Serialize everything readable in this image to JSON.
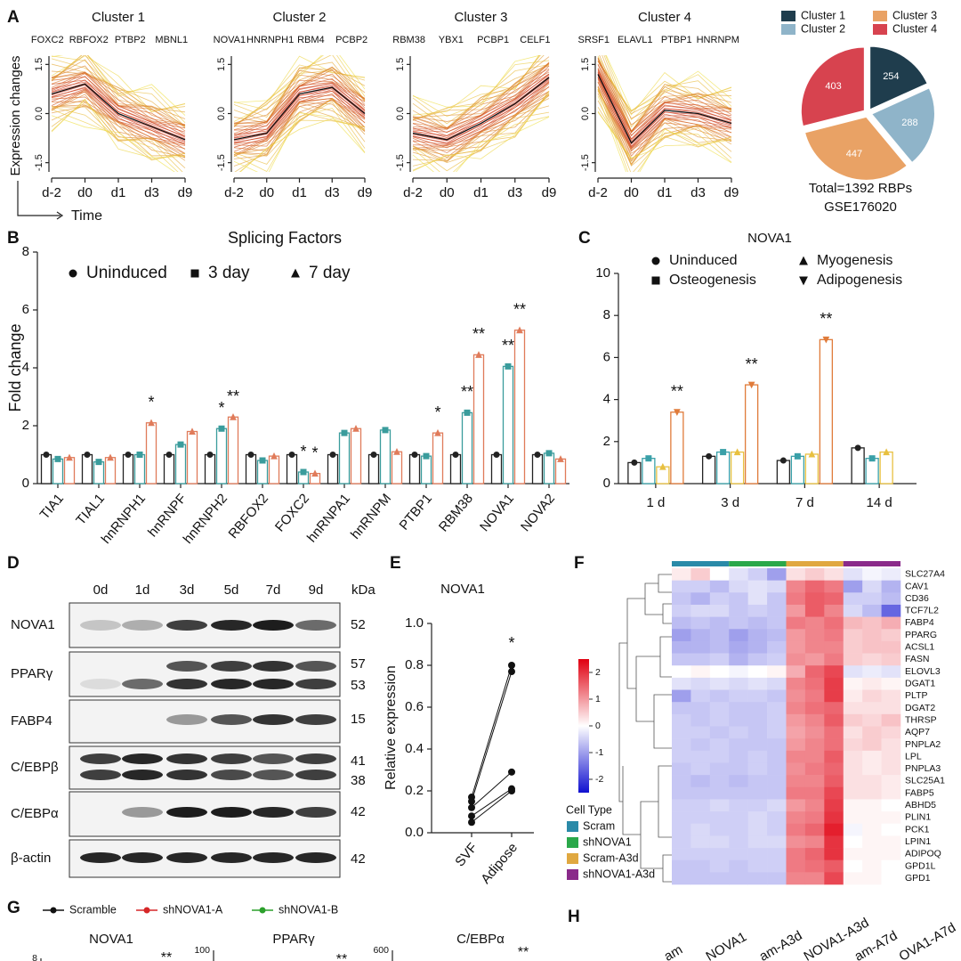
{
  "panel_labels": [
    "A",
    "B",
    "C",
    "D",
    "E",
    "F",
    "G",
    "H"
  ],
  "chart_data": [
    {
      "type": "line",
      "title": "Cluster 1",
      "genes": [
        "FOXC2",
        "RBFOX2",
        "PTBP2",
        "MBNL1"
      ],
      "ylabel": "Expression changes",
      "xlabel": "Time",
      "categories": [
        "d-2",
        "d0",
        "d1",
        "d3",
        "d9"
      ],
      "series": [
        {
          "color": "#111111",
          "values": [
            0.6,
            0.9,
            0.0,
            -0.4,
            -0.8
          ]
        }
      ],
      "ylim": [
        -1.7,
        1.7
      ],
      "yticks": [
        1.5,
        {
          "value": 0,
          "label": "0.0"
        },
        -1.5
      ]
    },
    {
      "type": "line",
      "title": "Cluster 2",
      "genes": [
        "NOVA1",
        "HNRNPH1",
        "RBM4",
        "PCBP2"
      ],
      "categories": [
        "d-2",
        "d0",
        "d1",
        "d3",
        "d9"
      ],
      "series": [
        {
          "color": "#111111",
          "values": [
            -0.8,
            -0.6,
            0.6,
            0.8,
            0.0
          ]
        }
      ],
      "ylim": [
        -1.7,
        1.7
      ],
      "yticks": [
        1.5,
        {
          "value": 0,
          "label": "0.0"
        },
        -1.5
      ]
    },
    {
      "type": "line",
      "title": "Cluster 3",
      "genes": [
        "RBM38",
        "YBX1",
        "PCBP1",
        "CELF1"
      ],
      "categories": [
        "d-2",
        "d0",
        "d1",
        "d3",
        "d9"
      ],
      "series": [
        {
          "color": "#111111",
          "values": [
            -0.6,
            -0.8,
            -0.3,
            0.3,
            1.1
          ]
        }
      ],
      "ylim": [
        -1.7,
        1.7
      ],
      "yticks": [
        1.5,
        {
          "value": 0,
          "label": "0.0"
        },
        -1.5
      ]
    },
    {
      "type": "line",
      "title": "Cluster 4",
      "genes": [
        "SRSF1",
        "ELAVL1",
        "PTBP1",
        "HNRNPM"
      ],
      "categories": [
        "d-2",
        "d0",
        "d1",
        "d3",
        "d9"
      ],
      "series": [
        {
          "color": "#111111",
          "values": [
            1.2,
            -0.9,
            0.1,
            0.0,
            -0.3
          ]
        }
      ],
      "ylim": [
        -1.7,
        1.7
      ],
      "yticks": [
        1.5,
        {
          "value": 0,
          "label": "0.0"
        },
        -1.5
      ]
    },
    {
      "type": "pie",
      "categories": [
        "Cluster 1",
        "Cluster 2",
        "Cluster 3",
        "Cluster 4"
      ],
      "values": [
        254,
        288,
        447,
        403
      ],
      "colors": [
        "#1f3d4d",
        "#8fb4c9",
        "#e9a265",
        "#d7434f"
      ],
      "caption": [
        "Total=1392 RBPs",
        "GSE176020"
      ]
    },
    {
      "type": "bar",
      "title": "Splicing Factors",
      "ylabel": "Fold change",
      "categories": [
        "TIA1",
        "TIAL1",
        "hnRNPH1",
        "hnRNPF",
        "hnRNPH2",
        "RBFOX2",
        "FOXC2",
        "hnRNPA1",
        "hnRNPM",
        "PTBP1",
        "RBM38",
        "NOVA1",
        "NOVA2"
      ],
      "series": [
        {
          "name": "Uninduced",
          "color": "#222222",
          "marker": "circle",
          "values": [
            1,
            1,
            1,
            1,
            1,
            1,
            1,
            1,
            1,
            1,
            1,
            1,
            1
          ]
        },
        {
          "name": "3 day",
          "color": "#3a9c9c",
          "marker": "square",
          "values": [
            0.85,
            0.75,
            1.0,
            1.35,
            1.9,
            0.8,
            0.4,
            1.75,
            1.85,
            0.95,
            2.45,
            4.05,
            1.05
          ],
          "significance": [
            null,
            null,
            null,
            null,
            "*",
            null,
            "*",
            null,
            null,
            null,
            "**",
            "**",
            null
          ]
        },
        {
          "name": "7 day",
          "color": "#e07b5a",
          "marker": "triangle",
          "values": [
            0.9,
            0.9,
            2.1,
            1.8,
            2.3,
            0.95,
            0.35,
            1.9,
            1.1,
            1.75,
            4.45,
            5.3,
            0.85
          ],
          "significance": [
            null,
            null,
            "*",
            null,
            "**",
            null,
            "*",
            null,
            null,
            "*",
            "**",
            "**",
            null
          ]
        }
      ],
      "ylim": [
        0,
        8
      ],
      "yticks": [
        0,
        2,
        4,
        6,
        8
      ]
    },
    {
      "type": "bar",
      "title": "NOVA1",
      "categories": [
        "1 d",
        "3 d",
        "7 d",
        "14 d"
      ],
      "series": [
        {
          "name": "Uninduced",
          "color": "#222222",
          "marker": "circle",
          "values": [
            1.0,
            1.3,
            1.1,
            1.7
          ]
        },
        {
          "name": "Osteogenesis",
          "color": "#3aa0a8",
          "marker": "square",
          "values": [
            1.2,
            1.5,
            1.3,
            1.2
          ]
        },
        {
          "name": "Myogenesis",
          "color": "#e8c040",
          "marker": "triangle",
          "values": [
            0.8,
            1.5,
            1.4,
            1.5
          ]
        },
        {
          "name": "Adipogenesis",
          "color": "#e07b3a",
          "marker": "triangle-down",
          "values": [
            3.4,
            4.7,
            6.85,
            null
          ],
          "significance": [
            "**",
            "**",
            "**",
            null
          ]
        }
      ],
      "ylim": [
        0,
        10
      ],
      "yticks": [
        0,
        2,
        4,
        6,
        8,
        10
      ]
    },
    {
      "type": "paired",
      "title": "NOVA1",
      "ylabel": "Relative expression",
      "categories": [
        "SVF",
        "Adipose"
      ],
      "significance": "*",
      "series": [
        {
          "color": "#111111",
          "values": [
            0.17,
            0.8
          ]
        },
        {
          "color": "#111111",
          "values": [
            0.15,
            0.77
          ]
        },
        {
          "color": "#111111",
          "values": [
            0.12,
            0.29
          ]
        },
        {
          "color": "#111111",
          "values": [
            0.08,
            0.21
          ]
        },
        {
          "color": "#111111",
          "values": [
            0.05,
            0.2
          ]
        }
      ],
      "ylim": [
        0,
        1
      ],
      "yticks": [
        {
          "value": 0,
          "label": "0.0"
        },
        0.2,
        0.4,
        0.6,
        0.8,
        {
          "value": 1,
          "label": "1.0"
        }
      ]
    },
    {
      "type": "heatmap",
      "legend_title": "Cell Type",
      "groups": [
        {
          "name": "Scram",
          "color": "#2a8aa8"
        },
        {
          "name": "shNOVA1",
          "color": "#2aa84a"
        },
        {
          "name": "Scram-A3d",
          "color": "#e0a840"
        },
        {
          "name": "shNOVA1-A3d",
          "color": "#8a2a8a"
        }
      ],
      "rows": [
        "SLC27A4",
        "CAV1",
        "CD36",
        "TCF7L2",
        "FABP4",
        "PPARG",
        "ACSL1",
        "FASN",
        "ELOVL3",
        "DGAT1",
        "PLTP",
        "DGAT2",
        "THRSP",
        "AQP7",
        "PNPLA2",
        "LPL",
        "PNPLA3",
        "SLC25A1",
        "FABP5",
        "ABHD5",
        "PLIN1",
        "PCK1",
        "LPIN1",
        "ADIPOQ",
        "GPD1L",
        "GPD1"
      ],
      "values": [
        [
          0.2,
          0.5,
          0,
          -0.3,
          -0.5,
          -1.0,
          0.3,
          0.5,
          0.3,
          -0.3,
          -0.1,
          -0.2
        ],
        [
          -0.5,
          -0.5,
          -0.7,
          -0.4,
          -0.3,
          -0.4,
          1.2,
          1.5,
          1.3,
          -1.0,
          -0.4,
          -0.8
        ],
        [
          -0.6,
          -0.8,
          -0.5,
          -0.6,
          -0.3,
          -0.6,
          1.3,
          1.6,
          1.5,
          -0.5,
          -0.5,
          -0.7
        ],
        [
          -0.5,
          -0.4,
          -0.4,
          -0.6,
          -0.5,
          -0.6,
          1.0,
          1.6,
          1.2,
          -0.4,
          -0.7,
          -1.6
        ],
        [
          -0.7,
          -0.6,
          -0.7,
          -0.6,
          -0.7,
          -0.6,
          1.3,
          1.2,
          1.4,
          0.7,
          0.6,
          0.8
        ],
        [
          -1.0,
          -0.8,
          -0.7,
          -1.0,
          -0.8,
          -0.7,
          1.0,
          1.2,
          1.3,
          0.5,
          0.6,
          0.5
        ],
        [
          -0.8,
          -0.8,
          -0.7,
          -0.9,
          -0.8,
          -0.6,
          1.0,
          1.2,
          1.2,
          0.5,
          0.6,
          0.6
        ],
        [
          -0.6,
          -0.6,
          -0.5,
          -0.8,
          -0.6,
          -0.5,
          1.1,
          1.0,
          1.3,
          0.5,
          0.4,
          0.5
        ],
        [
          0,
          0.1,
          0,
          -0.1,
          0,
          0.1,
          0.8,
          1.5,
          1.8,
          -0.3,
          -0.2,
          -0.3
        ],
        [
          -0.3,
          -0.4,
          -0.3,
          -0.4,
          -0.3,
          -0.4,
          1.2,
          1.4,
          1.9,
          0.1,
          0.2,
          0.1
        ],
        [
          -1.0,
          -0.5,
          -0.6,
          -0.5,
          -0.5,
          -0.6,
          1.1,
          1.3,
          1.9,
          0.2,
          0.4,
          0.3
        ],
        [
          -0.6,
          -0.6,
          -0.5,
          -0.6,
          -0.6,
          -0.5,
          1.2,
          1.4,
          1.5,
          0.3,
          0.3,
          0.3
        ],
        [
          -0.5,
          -0.6,
          -0.5,
          -0.6,
          -0.6,
          -0.5,
          1.0,
          1.2,
          1.6,
          0.5,
          0.4,
          0.6
        ],
        [
          -0.5,
          -0.5,
          -0.6,
          -0.5,
          -0.6,
          -0.5,
          0.9,
          1.1,
          1.4,
          0.3,
          0.5,
          0.4
        ],
        [
          -0.5,
          -0.6,
          -0.5,
          -0.6,
          -0.6,
          -0.6,
          1.0,
          1.2,
          1.4,
          0.4,
          0.5,
          0.3
        ],
        [
          -0.5,
          -0.5,
          -0.5,
          -0.6,
          -0.5,
          -0.6,
          1.2,
          1.2,
          1.6,
          0.3,
          0.2,
          0.3
        ],
        [
          -0.6,
          -0.5,
          -0.6,
          -0.6,
          -0.5,
          -0.6,
          1.1,
          1.3,
          1.5,
          0.3,
          0.2,
          0.3
        ],
        [
          -0.6,
          -0.7,
          -0.6,
          -0.7,
          -0.6,
          -0.6,
          1.2,
          1.2,
          1.6,
          0.3,
          0.3,
          0.2
        ],
        [
          -0.6,
          -0.6,
          -0.6,
          -0.6,
          -0.6,
          -0.6,
          1.3,
          1.3,
          1.8,
          0.3,
          0.3,
          0.2
        ],
        [
          -0.5,
          -0.5,
          -0.4,
          -0.5,
          -0.5,
          -0.4,
          1.0,
          1.2,
          1.9,
          0.1,
          0.1,
          0.0
        ],
        [
          -0.5,
          -0.5,
          -0.5,
          -0.5,
          -0.4,
          -0.5,
          1.2,
          1.3,
          2.0,
          0.1,
          0.1,
          0.1
        ],
        [
          -0.5,
          -0.4,
          -0.5,
          -0.5,
          -0.4,
          -0.5,
          1.3,
          1.5,
          2.2,
          -0.1,
          0.1,
          0.0
        ],
        [
          -0.5,
          -0.4,
          -0.4,
          -0.5,
          -0.4,
          -0.4,
          1.1,
          1.2,
          2.0,
          0.0,
          0.1,
          0.1
        ],
        [
          -0.5,
          -0.5,
          -0.5,
          -0.5,
          -0.5,
          -0.5,
          1.3,
          1.5,
          2.0,
          0.1,
          0.1,
          0.1
        ],
        [
          -0.6,
          -0.6,
          -0.5,
          -0.6,
          -0.5,
          -0.5,
          1.3,
          1.4,
          1.6,
          0.0,
          0.1,
          0.0
        ],
        [
          -0.6,
          -0.6,
          -0.6,
          -0.6,
          -0.6,
          -0.6,
          1.2,
          1.2,
          1.8,
          0.1,
          0.1,
          0.0
        ]
      ],
      "clim": [
        -2.5,
        2.5
      ],
      "cticks": [
        2,
        1,
        0,
        -1,
        -2
      ]
    }
  ],
  "blot": {
    "lanes": [
      "0d",
      "1d",
      "3d",
      "5d",
      "7d",
      "9d"
    ],
    "unit": "kDa",
    "rows": [
      {
        "name": "NOVA1",
        "sizes": [
          52
        ]
      },
      {
        "name": "PPARγ",
        "sizes": [
          57,
          53
        ]
      },
      {
        "name": "FABP4",
        "sizes": [
          15
        ]
      },
      {
        "name": "C/EBPβ",
        "sizes": [
          41,
          38
        ]
      },
      {
        "name": "C/EBPα",
        "sizes": [
          42
        ]
      },
      {
        "name": "β-actin",
        "sizes": [
          42
        ]
      }
    ]
  },
  "panel_g": {
    "legend": [
      {
        "name": "Scramble",
        "color": "#111111"
      },
      {
        "name": "shNOVA1-A",
        "color": "#d62728"
      },
      {
        "name": "shNOVA1-B",
        "color": "#2ca02c"
      }
    ],
    "titles": [
      "NOVA1",
      "PPARγ",
      "C/EBPα"
    ],
    "tick_labels": [
      8,
      100,
      600
    ],
    "stars": [
      "**",
      "**",
      "**"
    ]
  },
  "panel_h": {
    "labels": [
      "am",
      "NOVA1",
      "am-A3d",
      "NOVA1-A3d",
      "am-A7d",
      "OVA1-A7d"
    ]
  }
}
